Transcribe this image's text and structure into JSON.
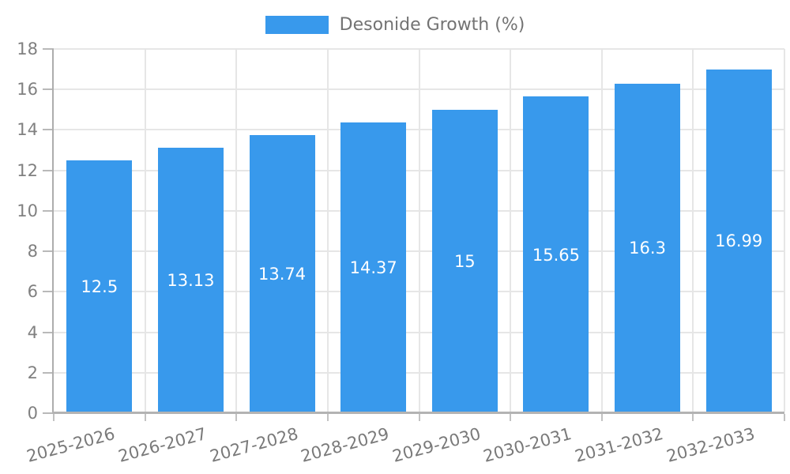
{
  "legend": {
    "label": "Desonide Growth (%)"
  },
  "chart_data": {
    "type": "bar",
    "title": "Desonide Growth (%)",
    "categories": [
      "2025-2026",
      "2026-2027",
      "2027-2028",
      "2028-2029",
      "2029-2030",
      "2030-2031",
      "2031-2032",
      "2032-2033"
    ],
    "series": [
      {
        "name": "Desonide Growth (%)",
        "values": [
          12.5,
          13.13,
          13.74,
          14.37,
          15,
          15.65,
          16.3,
          16.99
        ]
      }
    ],
    "values": [
      12.5,
      13.13,
      13.74,
      14.37,
      15,
      15.65,
      16.3,
      16.99
    ],
    "value_labels": [
      "12.5",
      "13.13",
      "13.74",
      "14.37",
      "15",
      "15.65",
      "16.3",
      "16.99"
    ],
    "xlabel": "",
    "ylabel": "",
    "ylim": [
      0,
      18
    ],
    "yticks": [
      0,
      2,
      4,
      6,
      8,
      10,
      12,
      14,
      16,
      18
    ],
    "grid": true,
    "legend_position": "top-center",
    "colors": {
      "bar": "#3899EC",
      "grid": "#e6e6e6",
      "axis": "#b3b3b3",
      "tick_label": "#808080",
      "legend_text": "#737373",
      "value_label": "#ffffff",
      "background": "#ffffff"
    }
  }
}
